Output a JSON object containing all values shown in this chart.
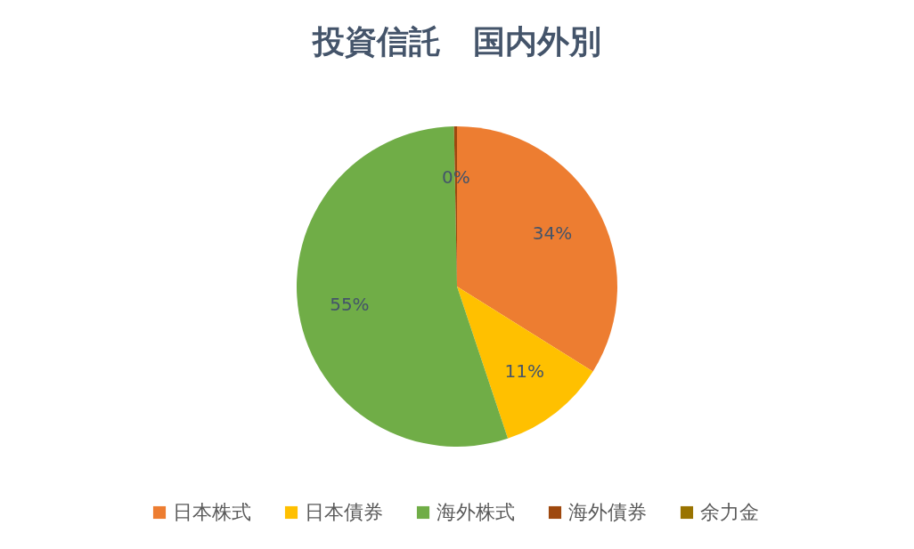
{
  "chart_data": {
    "type": "pie",
    "title": "投資信託　国内外別",
    "categories": [
      "日本株式",
      "日本債券",
      "海外株式",
      "海外債券",
      "余力金"
    ],
    "values": [
      34,
      11,
      55,
      0.3,
      null
    ],
    "colors": [
      "#ed7d31",
      "#ffc000",
      "#70ad47",
      "#9e480e",
      "#997300"
    ],
    "value_labels": [
      "34%",
      "11%",
      "55%",
      "0%",
      null
    ],
    "legend": "bottom"
  }
}
